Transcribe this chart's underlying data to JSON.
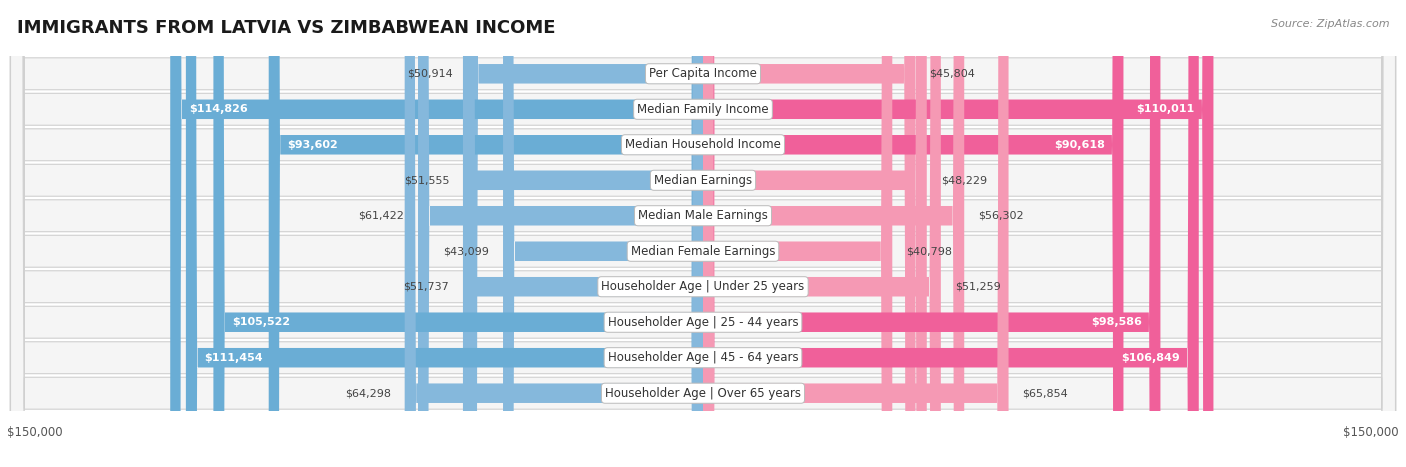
{
  "title": "IMMIGRANTS FROM LATVIA VS ZIMBABWEAN INCOME",
  "source": "Source: ZipAtlas.com",
  "categories": [
    "Per Capita Income",
    "Median Family Income",
    "Median Household Income",
    "Median Earnings",
    "Median Male Earnings",
    "Median Female Earnings",
    "Householder Age | Under 25 years",
    "Householder Age | 25 - 44 years",
    "Householder Age | 45 - 64 years",
    "Householder Age | Over 65 years"
  ],
  "latvia_values": [
    50914,
    114826,
    93602,
    51555,
    61422,
    43099,
    51737,
    105522,
    111454,
    64298
  ],
  "zimbabwe_values": [
    45804,
    110011,
    90618,
    48229,
    56302,
    40798,
    51259,
    98586,
    106849,
    65854
  ],
  "latvia_color": "#85b8dc",
  "zimbabwe_color": "#f599b4",
  "latvia_color_strong": "#6aadd5",
  "zimbabwe_color_strong": "#f0609a",
  "latvia_label": "Immigrants from Latvia",
  "zimbabwe_label": "Zimbabwean",
  "max_value": 150000,
  "title_fontsize": 13,
  "label_fontsize": 8.5,
  "value_fontsize": 8,
  "axis_label": "$150,000",
  "background_color": "#ffffff",
  "row_facecolor": "#f5f5f5",
  "row_edgecolor": "#d0d0d0"
}
